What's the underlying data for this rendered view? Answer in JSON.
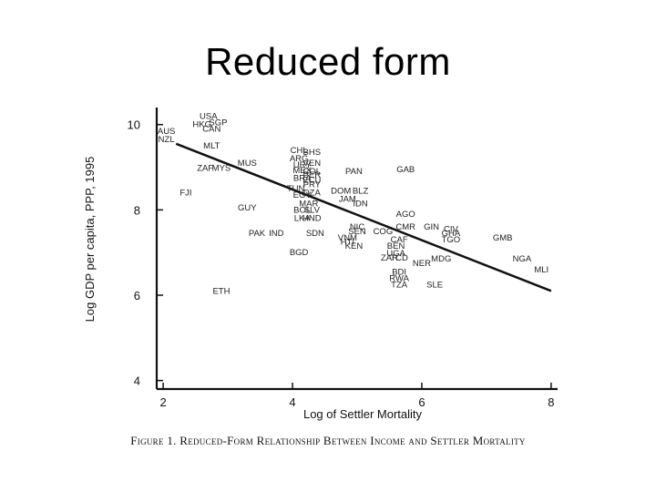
{
  "slide": {
    "title": "Reduced form"
  },
  "chart_data": {
    "type": "scatter",
    "xlabel": "Log of Settler Mortality",
    "ylabel": "Log GDP per capita, PPP, 1995",
    "xlim": [
      1.9,
      8.1
    ],
    "ylim": [
      3.8,
      10.4
    ],
    "xticks": [
      2,
      4,
      6,
      8
    ],
    "yticks": [
      4,
      6,
      8,
      10
    ],
    "fit_line": {
      "x": [
        2.2,
        8.0
      ],
      "y": [
        9.55,
        6.1
      ]
    },
    "caption": "Figure 1. Reduced-Form Relationship Between Income and Settler Mortality",
    "points": [
      {
        "label": "USA",
        "x": 2.7,
        "y": 10.2
      },
      {
        "label": "SGP",
        "x": 2.85,
        "y": 10.05
      },
      {
        "label": "HKG",
        "x": 2.6,
        "y": 10.0
      },
      {
        "label": "CAN",
        "x": 2.75,
        "y": 9.9
      },
      {
        "label": "AUS",
        "x": 2.05,
        "y": 9.85
      },
      {
        "label": "NZL",
        "x": 2.05,
        "y": 9.65
      },
      {
        "label": "MLT",
        "x": 2.75,
        "y": 9.5
      },
      {
        "label": "MUS",
        "x": 3.3,
        "y": 9.1
      },
      {
        "label": "ZAF",
        "x": 2.65,
        "y": 8.98
      },
      {
        "label": "MYS",
        "x": 2.9,
        "y": 8.98
      },
      {
        "label": "FJI",
        "x": 2.35,
        "y": 8.4
      },
      {
        "label": "GUY",
        "x": 3.3,
        "y": 8.05
      },
      {
        "label": "PAK",
        "x": 3.45,
        "y": 7.45
      },
      {
        "label": "IND",
        "x": 3.75,
        "y": 7.45
      },
      {
        "label": "BGD",
        "x": 4.1,
        "y": 7.0
      },
      {
        "label": "ETH",
        "x": 2.9,
        "y": 6.1
      },
      {
        "label": "CHL",
        "x": 4.1,
        "y": 9.4
      },
      {
        "label": "BHS",
        "x": 4.3,
        "y": 9.35
      },
      {
        "label": "ARG",
        "x": 4.1,
        "y": 9.2
      },
      {
        "label": "URY",
        "x": 4.15,
        "y": 9.05
      },
      {
        "label": "VEN",
        "x": 4.3,
        "y": 9.1
      },
      {
        "label": "MEX",
        "x": 4.15,
        "y": 8.93
      },
      {
        "label": "COL",
        "x": 4.3,
        "y": 8.9
      },
      {
        "label": "PER",
        "x": 4.3,
        "y": 8.82
      },
      {
        "label": "ECU",
        "x": 4.3,
        "y": 8.7
      },
      {
        "label": "BRA",
        "x": 4.15,
        "y": 8.75
      },
      {
        "label": "PRY",
        "x": 4.3,
        "y": 8.6
      },
      {
        "label": "TUN",
        "x": 4.05,
        "y": 8.5
      },
      {
        "label": "EGY",
        "x": 4.15,
        "y": 8.35
      },
      {
        "label": "MAR",
        "x": 4.25,
        "y": 8.15
      },
      {
        "label": "DZA",
        "x": 4.3,
        "y": 8.4
      },
      {
        "label": "LKA",
        "x": 4.15,
        "y": 7.8
      },
      {
        "label": "BOL",
        "x": 4.15,
        "y": 8.0
      },
      {
        "label": "SLV",
        "x": 4.3,
        "y": 8.0
      },
      {
        "label": "HND",
        "x": 4.3,
        "y": 7.8
      },
      {
        "label": "PAN",
        "x": 4.95,
        "y": 8.9
      },
      {
        "label": "DOM",
        "x": 4.75,
        "y": 8.45
      },
      {
        "label": "BLZ",
        "x": 5.05,
        "y": 8.45
      },
      {
        "label": "JAM",
        "x": 4.85,
        "y": 8.25
      },
      {
        "label": "IDN",
        "x": 5.05,
        "y": 8.15
      },
      {
        "label": "GAB",
        "x": 5.75,
        "y": 8.95
      },
      {
        "label": "SDN",
        "x": 4.35,
        "y": 7.45
      },
      {
        "label": "NIC",
        "x": 5.0,
        "y": 7.6
      },
      {
        "label": "SEN",
        "x": 5.0,
        "y": 7.5
      },
      {
        "label": "VNM",
        "x": 4.85,
        "y": 7.35
      },
      {
        "label": "HTI",
        "x": 4.85,
        "y": 7.25
      },
      {
        "label": "KEN",
        "x": 4.95,
        "y": 7.15
      },
      {
        "label": "AGO",
        "x": 5.75,
        "y": 7.9
      },
      {
        "label": "CMR",
        "x": 5.75,
        "y": 7.6
      },
      {
        "label": "COG",
        "x": 5.4,
        "y": 7.5
      },
      {
        "label": "CAF",
        "x": 5.65,
        "y": 7.3
      },
      {
        "label": "BEN",
        "x": 5.6,
        "y": 7.15
      },
      {
        "label": "UGA",
        "x": 5.6,
        "y": 6.98
      },
      {
        "label": "ZAR",
        "x": 5.5,
        "y": 6.88
      },
      {
        "label": "TCD",
        "x": 5.65,
        "y": 6.88
      },
      {
        "label": "NER",
        "x": 6.0,
        "y": 6.75
      },
      {
        "label": "BDI",
        "x": 5.65,
        "y": 6.55
      },
      {
        "label": "RWA",
        "x": 5.65,
        "y": 6.4
      },
      {
        "label": "TZA",
        "x": 5.65,
        "y": 6.25
      },
      {
        "label": "SLE",
        "x": 6.2,
        "y": 6.25
      },
      {
        "label": "MDG",
        "x": 6.3,
        "y": 6.85
      },
      {
        "label": "GIN",
        "x": 6.15,
        "y": 7.6
      },
      {
        "label": "CIV",
        "x": 6.45,
        "y": 7.55
      },
      {
        "label": "GHA",
        "x": 6.45,
        "y": 7.45
      },
      {
        "label": "TGO",
        "x": 6.45,
        "y": 7.3
      },
      {
        "label": "GMB",
        "x": 7.25,
        "y": 7.35
      },
      {
        "label": "NGA",
        "x": 7.55,
        "y": 6.85
      },
      {
        "label": "MLI",
        "x": 7.85,
        "y": 6.6
      }
    ]
  }
}
